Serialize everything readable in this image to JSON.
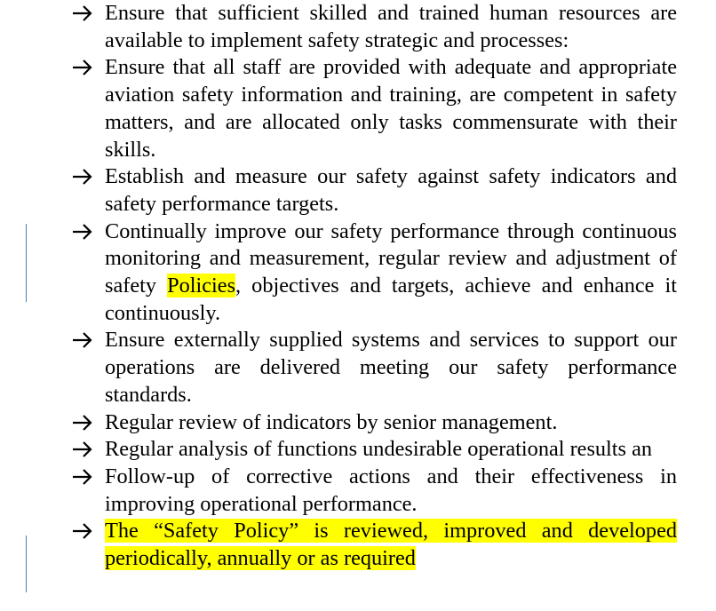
{
  "items": [
    {
      "text": "Ensure that sufficient skilled and trained human resources are available to implement safety strategic and processes:",
      "highlight": false
    },
    {
      "text": "Ensure that all staff are provided with adequate and appropriate aviation safety information and training, are competent in safety matters, and are allocated only tasks commensurate with their skills.",
      "highlight": false
    },
    {
      "text": "Establish and measure our safety against safety indicators and safety performance targets.",
      "highlight": false
    },
    {
      "text_before": "Continually improve our safety performance through continuous monitoring and measurement, regular review and adjustment of safety ",
      "text_highlight": "Policies",
      "text_after": ", objectives and targets, achieve and enhance it continuously.",
      "highlight": "partial"
    },
    {
      "text": "Ensure externally supplied systems and services to support our operations are delivered meeting our safety performance standards.",
      "highlight": false
    },
    {
      "text": "Regular review of indicators by senior management.",
      "highlight": false
    },
    {
      "text": "Regular analysis of functions undesirable operational results an",
      "highlight": false
    },
    {
      "text": "Follow-up of corrective actions and their effectiveness in improving operational performance.",
      "highlight": false
    },
    {
      "text": "The “Safety Policy” is reviewed, improved and developed periodically, annually or as required",
      "highlight": true
    }
  ],
  "bullet_icon": "arrow-right-icon",
  "colors": {
    "highlight": "#ffff00",
    "change_bar": "#4a7ebb",
    "text": "#000000"
  }
}
